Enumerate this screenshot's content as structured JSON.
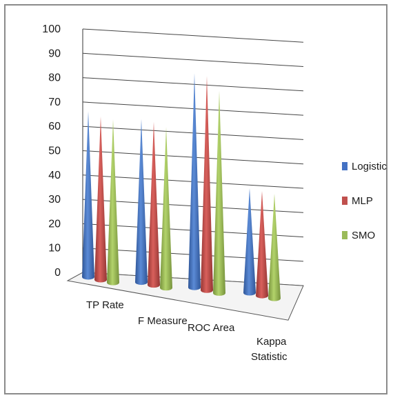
{
  "chart_data": {
    "type": "bar",
    "style": "3d-cone",
    "categories": [
      "TP Rate",
      "F Measure",
      "ROC Area",
      "Kappa Statistic"
    ],
    "category_lines": [
      [
        "TP Rate"
      ],
      [
        "F Measure"
      ],
      [
        "ROC Area"
      ],
      [
        "Kappa",
        "Statistic"
      ]
    ],
    "series": [
      {
        "name": "Logistic",
        "color": "#4472C4",
        "values": [
          68,
          67,
          88,
          43
        ]
      },
      {
        "name": "MLP",
        "color": "#C0504D",
        "values": [
          67,
          67,
          88,
          43
        ]
      },
      {
        "name": "SMO",
        "color": "#9BBB59",
        "values": [
          67,
          66,
          83,
          43
        ]
      }
    ],
    "ylim": [
      0,
      100
    ],
    "yticks": [
      "0",
      "10",
      "20",
      "30",
      "40",
      "50",
      "60",
      "70",
      "80",
      "90",
      "100"
    ],
    "grid": true,
    "legend": "right",
    "title": "",
    "xlabel": "",
    "ylabel": ""
  }
}
